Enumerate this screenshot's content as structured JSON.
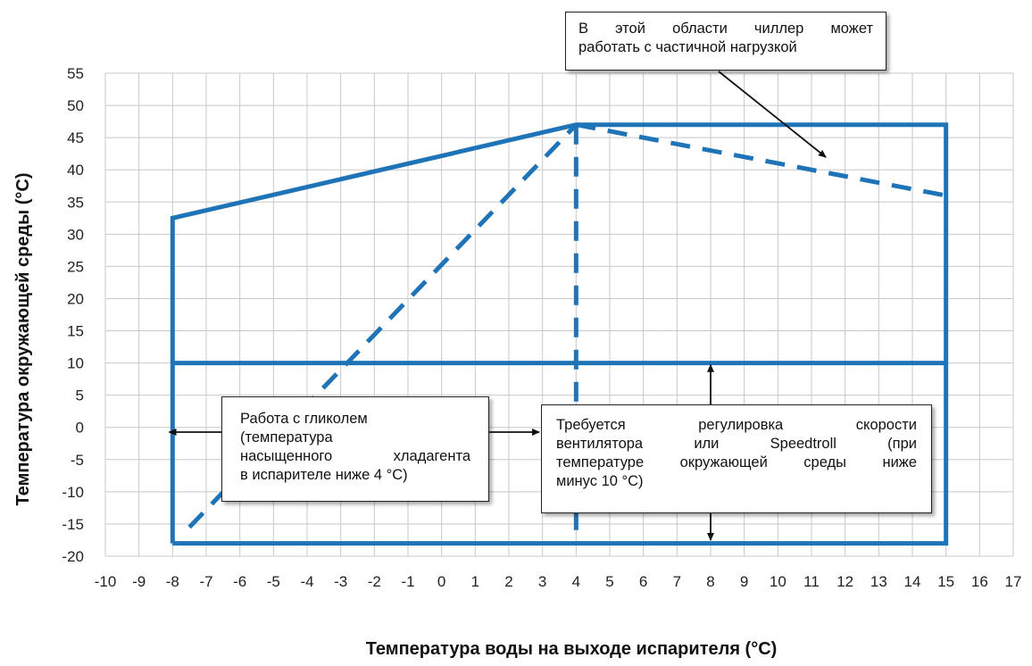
{
  "chart_data": {
    "type": "line",
    "ylabel": "Температура окружающей среды (°C)",
    "xlabel": "Температура воды на выходе испарителя (°C)",
    "xlim": [
      -10,
      17
    ],
    "ylim": [
      -20,
      55
    ],
    "x_ticks": [
      "-10",
      "-9",
      "-8",
      "-7",
      "-6",
      "-5",
      "-4",
      "-3",
      "-2",
      "-1",
      "0",
      "1",
      "2",
      "3",
      "4",
      "5",
      "6",
      "7",
      "8",
      "9",
      "10",
      "11",
      "12",
      "13",
      "14",
      "15",
      "16",
      "17"
    ],
    "y_ticks": [
      "55",
      "50",
      "45",
      "40",
      "35",
      "30",
      "25",
      "20",
      "15",
      "10",
      "5",
      "0",
      "-5",
      "-10",
      "-15",
      "-20"
    ],
    "grid": true,
    "line_color": "#1f73b7",
    "series": [
      {
        "style": "solid",
        "x": [
          -8,
          -8,
          4,
          15,
          15,
          -8
        ],
        "y": [
          -18,
          32.5,
          47,
          47,
          -18,
          -18
        ]
      },
      {
        "style": "solid",
        "x": [
          -8,
          15
        ],
        "y": [
          10,
          10
        ]
      },
      {
        "style": "dashed",
        "x": [
          -7.5,
          4
        ],
        "y": [
          -15.5,
          47
        ]
      },
      {
        "style": "dashed",
        "x": [
          4,
          15
        ],
        "y": [
          47,
          36
        ]
      },
      {
        "style": "dashed",
        "x": [
          4,
          4
        ],
        "y": [
          47,
          -18
        ]
      }
    ],
    "annotations": [
      {
        "id": "partial",
        "lines": [
          "В этой области чиллер может",
          "работать с частичной нагрузкой"
        ]
      },
      {
        "id": "glycol",
        "lines": [
          "Работа с гликолем",
          "(температура",
          "насыщенного хладагента",
          "в испарителе ниже 4 °C)"
        ]
      },
      {
        "id": "fan",
        "lines": [
          "Требуется регулировка скорости",
          "вентилятора или Speedtroll (при",
          "температуре окружающей среды ниже",
          "минус 10 °C)"
        ]
      }
    ]
  }
}
